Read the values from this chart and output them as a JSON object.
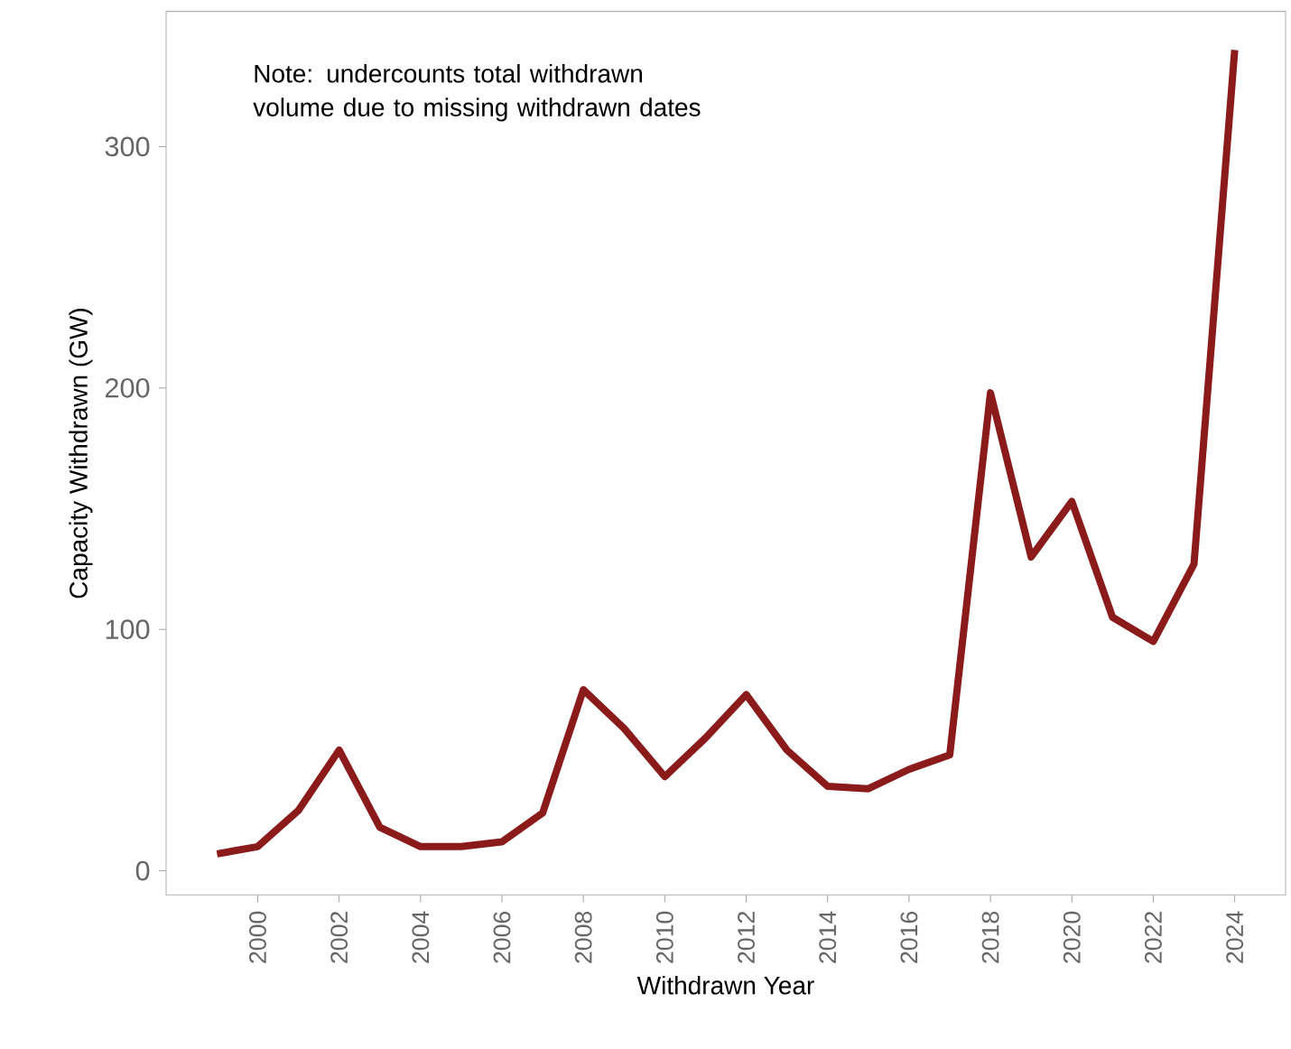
{
  "chart_data": {
    "type": "line",
    "xlabel": "Withdrawn Year",
    "ylabel": "Capacity Withdrawn (GW)",
    "annotations": [
      "Note: undercounts total withdrawn volume due to missing withdrawn dates"
    ],
    "x": [
      1999,
      2000,
      2001,
      2002,
      2003,
      2004,
      2005,
      2006,
      2007,
      2008,
      2009,
      2010,
      2011,
      2012,
      2013,
      2014,
      2015,
      2016,
      2017,
      2018,
      2019,
      2020,
      2021,
      2022,
      2023,
      2024
    ],
    "series": [
      {
        "color": "#8b1a1a",
        "values": [
          7,
          10,
          25,
          50,
          18,
          10,
          10,
          12,
          24,
          75,
          59,
          39,
          55,
          73,
          50,
          35,
          34,
          42,
          48,
          198,
          130,
          153,
          105,
          95,
          127,
          340
        ]
      }
    ],
    "xlim": [
      1997.75,
      2025.25
    ],
    "ylim": [
      -10,
      356
    ],
    "xticks": [
      2000,
      2002,
      2004,
      2006,
      2008,
      2010,
      2012,
      2014,
      2016,
      2018,
      2020,
      2022,
      2024
    ],
    "yticks": [
      0,
      100,
      200,
      300
    ],
    "grid": false,
    "marker": "none",
    "line_style": "solid"
  }
}
